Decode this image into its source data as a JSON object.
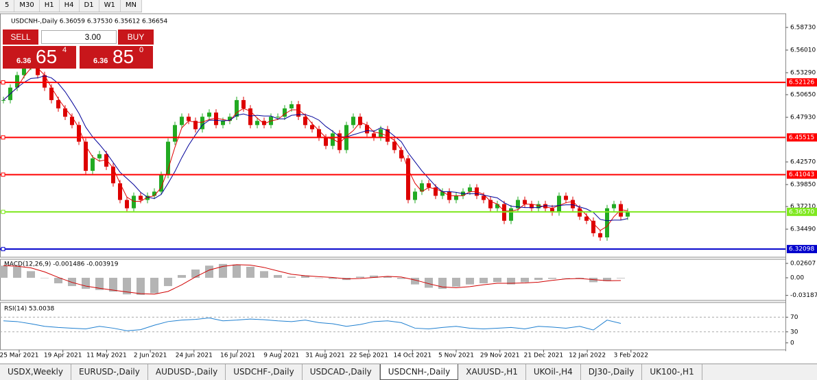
{
  "toolbar": {
    "timeframes": [
      "5",
      "M30",
      "H1",
      "H4",
      "D1",
      "W1",
      "MN"
    ]
  },
  "chart_data": {
    "type": "candlestick",
    "title": "USDCNH-,Daily 6.36059 6.37530 6.35612 6.36654",
    "x": [
      "25 Mar 2021",
      "19 Apr 2021",
      "11 May 2021",
      "2 Jun 2021",
      "24 Jun 2021",
      "16 Jul 2021",
      "9 Aug 2021",
      "31 Aug 2021",
      "22 Sep 2021",
      "14 Oct 2021",
      "5 Nov 2021",
      "29 Nov 2021",
      "21 Dec 2021",
      "12 Jan 2022",
      "3 Feb 2022"
    ],
    "closes": [
      6.5,
      6.515,
      6.53,
      6.54,
      6.545,
      6.53,
      6.515,
      6.5,
      6.49,
      6.48,
      6.47,
      6.45,
      6.415,
      6.43,
      6.435,
      6.42,
      6.4,
      6.38,
      6.37,
      6.385,
      6.38,
      6.385,
      6.39,
      6.41,
      6.45,
      6.47,
      6.48,
      6.475,
      6.465,
      6.48,
      6.485,
      6.47,
      6.475,
      6.48,
      6.5,
      6.49,
      6.47,
      6.475,
      6.47,
      6.48,
      6.48,
      6.49,
      6.495,
      6.48,
      6.47,
      6.465,
      6.455,
      6.445,
      6.46,
      6.44,
      6.47,
      6.48,
      6.47,
      6.46,
      6.455,
      6.465,
      6.45,
      6.44,
      6.43,
      6.38,
      6.39,
      6.4,
      6.395,
      6.385,
      6.39,
      6.38,
      6.385,
      6.39,
      6.395,
      6.385,
      6.38,
      6.37,
      6.375,
      6.355,
      6.37,
      6.38,
      6.375,
      6.37,
      6.375,
      6.37,
      6.365,
      6.385,
      6.38,
      6.37,
      6.36,
      6.355,
      6.34,
      6.335,
      6.37,
      6.375,
      6.36,
      6.366
    ],
    "up_color": "#22aa22",
    "down_color": "#dd0000",
    "ylim": [
      6.31118,
      6.60378
    ],
    "yticks": [
      {
        "value": 6.5873,
        "label": "6.58730"
      },
      {
        "value": 6.5601,
        "label": "6.56010"
      },
      {
        "value": 6.5329,
        "label": "6.53290"
      },
      {
        "value": 6.5065,
        "label": "6.50650"
      },
      {
        "value": 6.4793,
        "label": "6.47930"
      },
      {
        "value": 6.4257,
        "label": "6.42570"
      },
      {
        "value": 6.3985,
        "label": "6.39850"
      },
      {
        "value": 6.3721,
        "label": "6.37210"
      },
      {
        "value": 6.3449,
        "label": "6.34490"
      }
    ],
    "levels": [
      {
        "value": 6.52126,
        "label": "6.52126",
        "color": "#ff0000"
      },
      {
        "value": 6.45515,
        "label": "6.45515",
        "color": "#ff0000"
      },
      {
        "value": 6.41043,
        "label": "6.41043",
        "color": "#ff0000"
      },
      {
        "value": 6.3657,
        "label": "6.36570",
        "color": "#7fe81e"
      },
      {
        "value": 6.32098,
        "label": "6.32098",
        "color": "#0000cc"
      }
    ],
    "macd": {
      "title": "MACD(12,26,9) -0.001486 -0.003919",
      "ylim": [
        -0.041,
        0.0335
      ],
      "yticks": [
        0.02607,
        {
          "value": 0,
          "label": "0.00"
        },
        -0.031872
      ],
      "values": [
        0.022,
        0.02,
        0.012,
        0.0,
        -0.01,
        -0.015,
        -0.02,
        -0.022,
        -0.025,
        -0.03,
        -0.031,
        -0.028,
        -0.015,
        0.005,
        0.015,
        0.022,
        0.025,
        0.024,
        0.02,
        0.012,
        0.005,
        0.002,
        0.004,
        0.0,
        -0.002,
        -0.004,
        0.002,
        0.004,
        0.002,
        -0.002,
        -0.012,
        -0.018,
        -0.02,
        -0.016,
        -0.012,
        -0.01,
        -0.008,
        -0.012,
        -0.008,
        -0.004,
        -0.002,
        0.0,
        -0.002,
        -0.008,
        -0.006,
        -0.001
      ]
    },
    "rsi": {
      "title": "RSI(14) 53.0038",
      "ylim": [
        -19,
        110
      ],
      "yticks": [
        70,
        30,
        0
      ],
      "values": [
        60,
        58,
        52,
        45,
        42,
        40,
        38,
        45,
        40,
        33,
        36,
        48,
        58,
        62,
        64,
        68,
        60,
        62,
        65,
        63,
        60,
        58,
        62,
        55,
        52,
        45,
        50,
        58,
        60,
        55,
        40,
        38,
        42,
        45,
        40,
        38,
        40,
        42,
        38,
        45,
        43,
        40,
        45,
        35,
        62,
        53
      ]
    }
  },
  "trade_panel": {
    "sell": "SELL",
    "buy": "BUY",
    "lot": "3.00",
    "bid": [
      "6.36",
      "65",
      "4"
    ],
    "ask": [
      "6.36",
      "85",
      "0"
    ]
  },
  "tabs": [
    "USDX,Weekly",
    "EURUSD-,Daily",
    "AUDUSD-,Daily",
    "USDCHF-,Daily",
    "USDCAD-,Daily",
    "USDCNH-,Daily",
    "XAUUSD-,H1",
    "UKOil-,H4",
    "DJ30-,Daily",
    "UK100-,H1"
  ]
}
